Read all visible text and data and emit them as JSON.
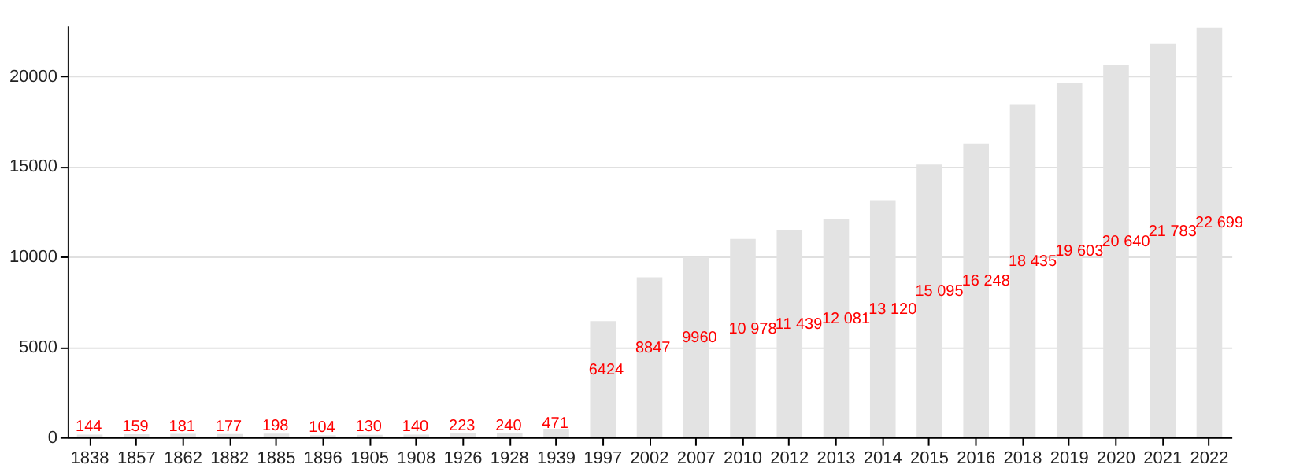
{
  "chart_data": {
    "type": "bar",
    "categories": [
      "1838",
      "1857",
      "1862",
      "1882",
      "1885",
      "1896",
      "1905",
      "1908",
      "1926",
      "1928",
      "1939",
      "1997",
      "2002",
      "2007",
      "2010",
      "2012",
      "2013",
      "2014",
      "2015",
      "2016",
      "2018",
      "2019",
      "2020",
      "2021",
      "2022"
    ],
    "values": [
      144,
      159,
      181,
      177,
      198,
      104,
      130,
      140,
      223,
      240,
      471,
      6424,
      8847,
      9960,
      10978,
      11439,
      12081,
      13120,
      15095,
      16248,
      18435,
      19603,
      20640,
      21783,
      22699
    ],
    "value_labels": [
      "144",
      "159",
      "181",
      "177",
      "198",
      "104",
      "130",
      "140",
      "223",
      "240",
      "471",
      "6424",
      "8847",
      "9960",
      "10 978",
      "11 439",
      "12 081",
      "13 120",
      "15 095",
      "16 248",
      "18 435",
      "19 603",
      "20 640",
      "21 783",
      "22 699"
    ],
    "color": "#e3e3e3",
    "ylim": [
      0,
      22800
    ],
    "yticks": [
      0,
      5000,
      10000,
      15000,
      20000
    ],
    "grid": "y"
  }
}
